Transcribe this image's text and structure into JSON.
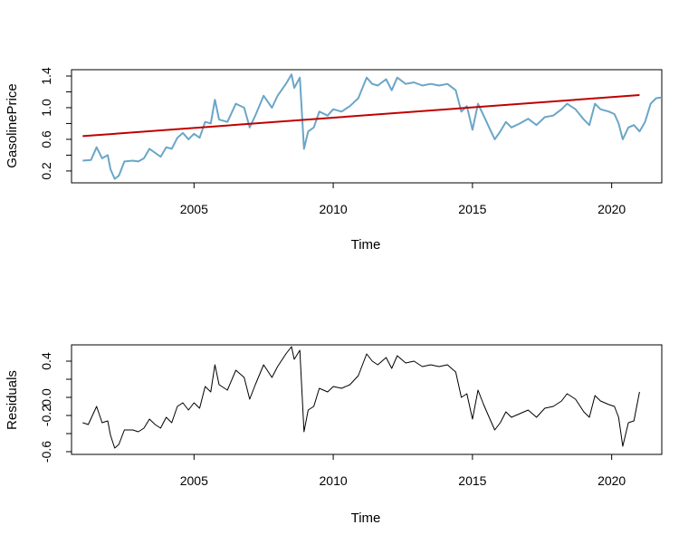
{
  "colors": {
    "price_line": "#6aa6c8",
    "trend_line": "#c00000",
    "residual_line": "#000000",
    "frame": "#000000"
  },
  "chart_data": [
    {
      "type": "line",
      "title": "",
      "xlabel": "Time",
      "ylabel": "GasolinePrice",
      "xlim": [
        2000.6,
        2021.8
      ],
      "ylim": [
        0.05,
        1.48
      ],
      "xticks": [
        2005,
        2010,
        2015,
        2020
      ],
      "xtick_labels": [
        "2005",
        "2010",
        "2015",
        "2020"
      ],
      "yticks": [
        0.2,
        0.4,
        0.6,
        0.8,
        1.0,
        1.2,
        1.4
      ],
      "ytick_labels": [
        "0.2",
        "",
        "0.6",
        "",
        "1.0",
        "",
        "1.4"
      ],
      "grid": false,
      "series": [
        {
          "style": "price",
          "x": [
            2001.0,
            2001.3,
            2001.5,
            2001.7,
            2001.9,
            2002.0,
            2002.15,
            2002.3,
            2002.5,
            2002.8,
            2003.0,
            2003.2,
            2003.4,
            2003.6,
            2003.8,
            2004.0,
            2004.2,
            2004.4,
            2004.6,
            2004.8,
            2005.0,
            2005.2,
            2005.4,
            2005.6,
            2005.75,
            2005.9,
            2006.2,
            2006.5,
            2006.8,
            2007.0,
            2007.2,
            2007.5,
            2007.8,
            2008.0,
            2008.3,
            2008.5,
            2008.6,
            2008.8,
            2008.95,
            2009.1,
            2009.3,
            2009.5,
            2009.8,
            2010.0,
            2010.3,
            2010.6,
            2010.9,
            2011.2,
            2011.4,
            2011.6,
            2011.9,
            2012.1,
            2012.3,
            2012.6,
            2012.9,
            2013.2,
            2013.5,
            2013.8,
            2014.1,
            2014.4,
            2014.6,
            2014.8,
            2015.0,
            2015.2,
            2015.4,
            2015.6,
            2015.8,
            2016.0,
            2016.2,
            2016.4,
            2016.7,
            2017.0,
            2017.3,
            2017.6,
            2017.9,
            2018.2,
            2018.4,
            2018.7,
            2019.0,
            2019.2,
            2019.4,
            2019.6,
            2019.9,
            2020.1,
            2020.25,
            2020.4,
            2020.6,
            2020.8,
            2021.0,
            2021.2,
            2021.4,
            2021.6,
            2021.8
          ],
          "values": [
            0.33,
            0.34,
            0.5,
            0.36,
            0.4,
            0.22,
            0.1,
            0.14,
            0.32,
            0.33,
            0.32,
            0.36,
            0.48,
            0.43,
            0.38,
            0.5,
            0.48,
            0.62,
            0.68,
            0.6,
            0.67,
            0.62,
            0.82,
            0.8,
            1.1,
            0.85,
            0.82,
            1.05,
            1.0,
            0.75,
            0.9,
            1.15,
            1.0,
            1.15,
            1.3,
            1.42,
            1.25,
            1.38,
            0.48,
            0.7,
            0.75,
            0.95,
            0.9,
            0.98,
            0.95,
            1.02,
            1.12,
            1.38,
            1.3,
            1.28,
            1.36,
            1.22,
            1.38,
            1.3,
            1.32,
            1.28,
            1.3,
            1.28,
            1.3,
            1.22,
            0.95,
            1.02,
            0.72,
            1.05,
            0.9,
            0.75,
            0.6,
            0.7,
            0.82,
            0.75,
            0.8,
            0.86,
            0.78,
            0.88,
            0.9,
            0.98,
            1.05,
            0.98,
            0.85,
            0.78,
            1.05,
            0.98,
            0.95,
            0.92,
            0.8,
            0.6,
            0.75,
            0.78,
            0.7,
            0.82,
            1.05,
            1.12,
            1.13
          ]
        },
        {
          "style": "trend",
          "x": [
            2001.0,
            2021.0
          ],
          "values": [
            0.64,
            1.16
          ]
        }
      ]
    },
    {
      "type": "line",
      "title": "",
      "xlabel": "Time",
      "ylabel": "Residuals",
      "xlim": [
        2000.6,
        2021.8
      ],
      "ylim": [
        -0.63,
        0.58
      ],
      "xticks": [
        2005,
        2010,
        2015,
        2020
      ],
      "xtick_labels": [
        "2005",
        "2010",
        "2015",
        "2020"
      ],
      "yticks": [
        -0.6,
        -0.4,
        -0.2,
        0.0,
        0.2,
        0.4
      ],
      "ytick_labels": [
        "-0.6",
        "",
        "-0.2",
        "0.0",
        "",
        "0.4"
      ],
      "grid": false,
      "series": [
        {
          "style": "residual",
          "x": [
            2001.0,
            2001.2,
            2001.5,
            2001.7,
            2001.9,
            2002.0,
            2002.15,
            2002.3,
            2002.5,
            2002.8,
            2003.0,
            2003.2,
            2003.4,
            2003.6,
            2003.8,
            2004.0,
            2004.2,
            2004.4,
            2004.6,
            2004.8,
            2005.0,
            2005.2,
            2005.4,
            2005.6,
            2005.75,
            2005.9,
            2006.2,
            2006.5,
            2006.8,
            2007.0,
            2007.2,
            2007.5,
            2007.8,
            2008.0,
            2008.3,
            2008.5,
            2008.6,
            2008.8,
            2008.95,
            2009.1,
            2009.3,
            2009.5,
            2009.8,
            2010.0,
            2010.3,
            2010.6,
            2010.9,
            2011.2,
            2011.4,
            2011.6,
            2011.9,
            2012.1,
            2012.3,
            2012.6,
            2012.9,
            2013.2,
            2013.5,
            2013.8,
            2014.1,
            2014.4,
            2014.6,
            2014.8,
            2015.0,
            2015.2,
            2015.4,
            2015.6,
            2015.8,
            2016.0,
            2016.2,
            2016.4,
            2016.7,
            2017.0,
            2017.3,
            2017.6,
            2017.9,
            2018.2,
            2018.4,
            2018.7,
            2019.0,
            2019.2,
            2019.4,
            2019.6,
            2019.9,
            2020.1,
            2020.25,
            2020.4,
            2020.6,
            2020.8,
            2021.0
          ],
          "values": [
            -0.28,
            -0.3,
            -0.1,
            -0.28,
            -0.26,
            -0.42,
            -0.56,
            -0.52,
            -0.36,
            -0.36,
            -0.38,
            -0.34,
            -0.24,
            -0.3,
            -0.34,
            -0.22,
            -0.28,
            -0.1,
            -0.06,
            -0.14,
            -0.06,
            -0.12,
            0.12,
            0.06,
            0.36,
            0.14,
            0.08,
            0.3,
            0.22,
            -0.02,
            0.14,
            0.36,
            0.22,
            0.34,
            0.48,
            0.56,
            0.42,
            0.52,
            -0.38,
            -0.14,
            -0.1,
            0.1,
            0.06,
            0.12,
            0.1,
            0.14,
            0.24,
            0.48,
            0.4,
            0.36,
            0.44,
            0.32,
            0.46,
            0.38,
            0.4,
            0.34,
            0.36,
            0.34,
            0.36,
            0.28,
            0.0,
            0.04,
            -0.24,
            0.08,
            -0.08,
            -0.22,
            -0.36,
            -0.28,
            -0.16,
            -0.22,
            -0.18,
            -0.14,
            -0.22,
            -0.12,
            -0.1,
            -0.04,
            0.04,
            -0.02,
            -0.16,
            -0.22,
            0.02,
            -0.04,
            -0.08,
            -0.1,
            -0.22,
            -0.54,
            -0.28,
            -0.26,
            0.06
          ]
        }
      ]
    }
  ]
}
